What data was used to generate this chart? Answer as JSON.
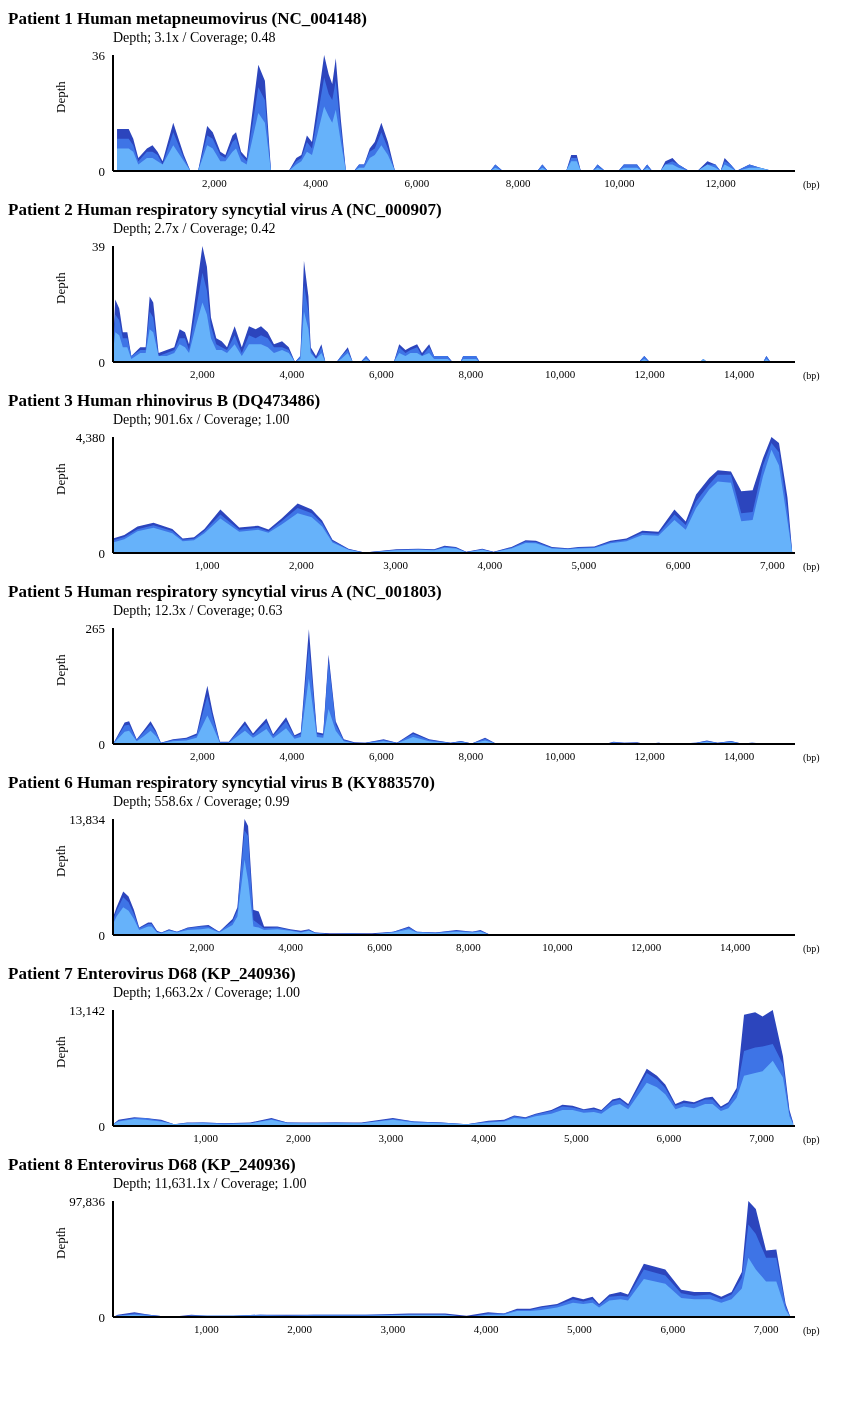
{
  "chart_data": [
    {
      "type": "area",
      "title": "Patient 1  Human metapneumovirus (NC_004148)",
      "subtitle": "Depth; 3.1x / Coverage; 0.48",
      "xlabel": "(bp)",
      "ylabel": "Depth",
      "xlim": [
        0,
        13470
      ],
      "ylim": [
        0,
        36
      ],
      "xticks": [
        {
          "value": 2000,
          "label": "2,000"
        },
        {
          "value": 4000,
          "label": "4,000"
        },
        {
          "value": 6000,
          "label": "6,000"
        },
        {
          "value": 8000,
          "label": "8,000"
        },
        {
          "value": 10000,
          "label": "10,000"
        },
        {
          "value": 12000,
          "label": "12,000"
        }
      ],
      "yticks": [
        0,
        36
      ],
      "x": [
        80,
        310,
        400,
        500,
        670,
        780,
        880,
        980,
        1190,
        1400,
        1530,
        1680,
        1860,
        1970,
        2120,
        2220,
        2360,
        2430,
        2530,
        2640,
        2870,
        3000,
        3120,
        3470,
        3620,
        3720,
        3830,
        3930,
        4030,
        4170,
        4260,
        4330,
        4400,
        4500,
        4600,
        4760,
        4860,
        4960,
        5070,
        5170,
        5300,
        5430,
        5570,
        7450,
        7550,
        7700,
        8380,
        8480,
        8590,
        8950,
        9050,
        9160,
        9240,
        9470,
        9570,
        9720,
        9980,
        10090,
        10350,
        10450,
        10550,
        10650,
        10810,
        10910,
        11050,
        11170,
        11380,
        11540,
        11740,
        11900,
        12000,
        12080,
        12200,
        12310,
        12570,
        12780,
        13030
      ],
      "series": [
        {
          "color": "#2c45bd",
          "values": [
            13,
            13,
            10,
            4,
            7,
            8,
            6,
            3,
            15,
            5,
            0,
            0,
            14,
            12,
            6,
            5,
            11,
            12,
            6,
            4,
            33,
            28,
            0,
            0,
            4,
            5,
            11,
            9,
            20,
            36,
            30,
            27,
            35,
            16,
            0,
            0,
            2,
            2,
            7,
            9,
            15,
            9,
            0,
            0,
            2,
            0,
            0,
            2,
            0,
            0,
            5,
            5,
            0,
            0,
            2,
            0,
            0,
            2,
            2,
            0,
            2,
            0,
            0,
            3,
            4,
            2,
            0,
            0,
            3,
            2,
            0,
            4,
            2,
            0,
            2,
            1,
            0
          ]
        },
        {
          "color": "#3e74e6",
          "values": [
            10,
            10,
            8,
            3,
            6,
            6,
            5,
            2,
            12,
            4,
            0,
            0,
            11,
            10,
            5,
            4,
            9,
            10,
            5,
            3,
            26,
            22,
            0,
            0,
            3,
            4,
            9,
            7,
            16,
            29,
            24,
            22,
            28,
            13,
            0,
            0,
            2,
            2,
            6,
            7,
            12,
            7,
            0,
            0,
            2,
            0,
            0,
            2,
            0,
            0,
            4,
            4,
            0,
            0,
            2,
            0,
            0,
            2,
            2,
            0,
            2,
            0,
            0,
            2,
            3,
            2,
            0,
            0,
            2,
            2,
            0,
            3,
            2,
            0,
            2,
            1,
            0
          ]
        },
        {
          "color": "#66b2fa",
          "values": [
            7,
            7,
            6,
            2,
            4,
            4,
            3,
            2,
            8,
            3,
            0,
            0,
            8,
            7,
            3,
            3,
            6,
            7,
            3,
            2,
            18,
            15,
            0,
            0,
            2,
            3,
            6,
            5,
            11,
            20,
            17,
            15,
            19,
            9,
            0,
            0,
            1,
            1,
            4,
            5,
            8,
            5,
            0,
            0,
            1,
            0,
            0,
            1,
            0,
            0,
            3,
            3,
            0,
            0,
            1,
            0,
            0,
            1,
            1,
            0,
            1,
            0,
            0,
            2,
            2,
            1,
            0,
            0,
            2,
            1,
            0,
            2,
            1,
            0,
            1,
            1,
            0
          ]
        }
      ]
    },
    {
      "type": "area",
      "title": "Patient 2  Human respiratory syncytial virus A (NC_000907)",
      "subtitle": "Depth; 2.7x / Coverage; 0.42",
      "xlabel": "(bp)",
      "ylabel": "Depth",
      "xlim": [
        0,
        15250
      ],
      "ylim": [
        0,
        39
      ],
      "xticks": [
        {
          "value": 2000,
          "label": "2,000"
        },
        {
          "value": 4000,
          "label": "4,000"
        },
        {
          "value": 6000,
          "label": "6,000"
        },
        {
          "value": 8000,
          "label": "8,000"
        },
        {
          "value": 10000,
          "label": "10,000"
        },
        {
          "value": 12000,
          "label": "12,000"
        },
        {
          "value": 14000,
          "label": "14,000"
        }
      ],
      "yticks": [
        0,
        39
      ],
      "x": [
        0,
        50,
        140,
        220,
        320,
        410,
        610,
        730,
        820,
        900,
        1020,
        1200,
        1370,
        1490,
        1610,
        1700,
        1870,
        2000,
        2100,
        2190,
        2310,
        2430,
        2550,
        2720,
        2880,
        3040,
        3190,
        3310,
        3460,
        3600,
        3780,
        3930,
        4070,
        4190,
        4270,
        4370,
        4420,
        4540,
        4660,
        4750,
        5000,
        5100,
        5250,
        5360,
        5540,
        5660,
        5770,
        6280,
        6400,
        6540,
        6650,
        6800,
        6910,
        7070,
        7180,
        7300,
        7480,
        7590,
        7770,
        7830,
        8120,
        8200,
        11760,
        11880,
        12000,
        13130,
        13200,
        13280,
        14540,
        14610,
        14700
      ],
      "series": [
        {
          "color": "#2c45bd",
          "values": [
            6,
            21,
            18,
            10,
            10,
            2,
            5,
            5,
            22,
            20,
            3,
            4,
            5,
            11,
            10,
            6,
            25,
            39,
            32,
            15,
            8,
            7,
            5,
            12,
            5,
            12,
            11,
            12,
            10,
            6,
            7,
            5,
            0,
            2,
            34,
            22,
            5,
            2,
            6,
            0,
            0,
            2,
            5,
            0,
            0,
            2,
            0,
            0,
            6,
            4,
            5,
            6,
            3,
            6,
            2,
            2,
            2,
            0,
            0,
            2,
            2,
            0,
            0,
            2,
            0,
            0,
            1,
            0,
            0,
            2,
            0
          ]
        },
        {
          "color": "#3e74e6",
          "values": [
            5,
            16,
            14,
            8,
            8,
            2,
            4,
            4,
            17,
            15,
            2,
            3,
            4,
            8,
            8,
            4,
            19,
            30,
            24,
            12,
            6,
            5,
            4,
            9,
            3,
            9,
            8,
            9,
            8,
            5,
            5,
            4,
            0,
            2,
            26,
            17,
            4,
            1,
            5,
            0,
            0,
            2,
            4,
            0,
            0,
            2,
            0,
            0,
            5,
            3,
            4,
            5,
            2,
            5,
            2,
            2,
            2,
            0,
            0,
            2,
            2,
            0,
            0,
            2,
            0,
            0,
            1,
            0,
            0,
            2,
            0
          ]
        },
        {
          "color": "#66b2fa",
          "values": [
            3,
            10,
            9,
            5,
            5,
            1,
            3,
            3,
            11,
            10,
            2,
            2,
            3,
            6,
            5,
            3,
            13,
            20,
            16,
            8,
            4,
            4,
            3,
            6,
            2,
            6,
            6,
            6,
            5,
            3,
            4,
            3,
            0,
            1,
            17,
            11,
            3,
            1,
            3,
            0,
            0,
            1,
            3,
            0,
            0,
            1,
            0,
            0,
            3,
            2,
            3,
            3,
            2,
            3,
            1,
            1,
            1,
            0,
            0,
            1,
            1,
            0,
            0,
            1,
            0,
            0,
            1,
            0,
            0,
            1,
            0
          ]
        }
      ]
    },
    {
      "type": "area",
      "title": "Patient 3  Human rhinovirus B (DQ473486)",
      "subtitle": "Depth; 901.6x / Coverage; 1.00",
      "xlabel": "(bp)",
      "ylabel": "Depth",
      "xlim": [
        0,
        7240
      ],
      "ylim": [
        0,
        4380
      ],
      "xticks": [
        {
          "value": 1000,
          "label": "1,000"
        },
        {
          "value": 2000,
          "label": "2,000"
        },
        {
          "value": 3000,
          "label": "3,000"
        },
        {
          "value": 4000,
          "label": "4,000"
        },
        {
          "value": 5000,
          "label": "5,000"
        },
        {
          "value": 6000,
          "label": "6,000"
        },
        {
          "value": 7000,
          "label": "7,000"
        }
      ],
      "yticks": [
        0,
        {
          "value": 4380,
          "label": "4,380"
        }
      ],
      "x": [
        0,
        120,
        260,
        430,
        630,
        740,
        860,
        970,
        1140,
        1340,
        1540,
        1650,
        1790,
        1960,
        2110,
        2220,
        2330,
        2500,
        2670,
        3010,
        3240,
        3410,
        3520,
        3640,
        3750,
        3920,
        4040,
        4230,
        4380,
        4490,
        4660,
        4830,
        4940,
        5110,
        5280,
        5450,
        5620,
        5790,
        5960,
        6080,
        6190,
        6330,
        6420,
        6560,
        6670,
        6790,
        6900,
        6990,
        7070,
        7160,
        7210
      ],
      "series": [
        {
          "color": "#2c45bd",
          "values": [
            550,
            680,
            1000,
            1140,
            910,
            550,
            590,
            910,
            1640,
            960,
            1030,
            890,
            1300,
            1870,
            1640,
            1230,
            500,
            160,
            20,
            140,
            160,
            140,
            270,
            230,
            50,
            160,
            50,
            230,
            480,
            460,
            230,
            180,
            230,
            250,
            460,
            550,
            840,
            800,
            1640,
            1190,
            2210,
            2830,
            3120,
            3080,
            2330,
            2370,
            3580,
            4380,
            4150,
            2100,
            50
          ]
        },
        {
          "color": "#3e74e6",
          "values": [
            480,
            600,
            900,
            1050,
            830,
            500,
            540,
            830,
            1450,
            880,
            950,
            820,
            1200,
            1700,
            1500,
            1120,
            450,
            140,
            20,
            120,
            140,
            120,
            240,
            200,
            40,
            140,
            40,
            200,
            430,
            420,
            200,
            160,
            200,
            220,
            420,
            500,
            760,
            730,
            1450,
            1060,
            1950,
            2600,
            2950,
            2950,
            1500,
            1550,
            3300,
            4150,
            3800,
            1600,
            30
          ]
        },
        {
          "color": "#66b2fa",
          "values": [
            400,
            520,
            820,
            950,
            750,
            440,
            480,
            750,
            1300,
            800,
            880,
            760,
            1080,
            1500,
            1350,
            1000,
            400,
            120,
            10,
            100,
            120,
            100,
            200,
            170,
            30,
            120,
            30,
            170,
            380,
            370,
            170,
            140,
            170,
            190,
            370,
            440,
            680,
            650,
            1250,
            880,
            1700,
            2400,
            2700,
            2650,
            1200,
            1250,
            2900,
            3900,
            3300,
            1200,
            20
          ]
        }
      ]
    },
    {
      "type": "area",
      "title": "Patient 5  Human respiratory syncytial virus A (NC_001803)",
      "subtitle": "Depth; 12.3x / Coverage; 0.63",
      "xlabel": "(bp)",
      "ylabel": "Depth",
      "xlim": [
        0,
        15250
      ],
      "ylim": [
        0,
        265
      ],
      "xticks": [
        {
          "value": 2000,
          "label": "2,000"
        },
        {
          "value": 4000,
          "label": "4,000"
        },
        {
          "value": 6000,
          "label": "6,000"
        },
        {
          "value": 8000,
          "label": "8,000"
        },
        {
          "value": 10000,
          "label": "10,000"
        },
        {
          "value": 12000,
          "label": "12,000"
        },
        {
          "value": 14000,
          "label": "14,000"
        }
      ],
      "yticks": [
        0,
        265
      ],
      "x": [
        0,
        260,
        360,
        530,
        680,
        840,
        960,
        1070,
        1340,
        1640,
        1870,
        2110,
        2230,
        2390,
        2590,
        2950,
        3130,
        3430,
        3580,
        3870,
        4060,
        4200,
        4380,
        4560,
        4700,
        4820,
        4980,
        5160,
        5400,
        5640,
        6050,
        6350,
        6710,
        7070,
        7550,
        7780,
        8020,
        8320,
        8560,
        8740,
        11000,
        11190,
        11430,
        11720,
        11900,
        12200,
        12440,
        13040,
        13280,
        13520,
        13820,
        14050,
        14290,
        14590,
        14770
      ],
      "series": [
        {
          "color": "#2c45bd",
          "values": [
            0,
            49,
            52,
            11,
            30,
            52,
            31,
            3,
            11,
            14,
            24,
            133,
            72,
            5,
            5,
            52,
            24,
            58,
            22,
            61,
            20,
            27,
            262,
            27,
            24,
            204,
            52,
            11,
            4,
            3,
            11,
            3,
            27,
            11,
            3,
            7,
            1,
            14,
            1,
            0,
            0,
            5,
            3,
            4,
            0,
            3,
            0,
            3,
            8,
            3,
            7,
            1,
            3,
            1,
            0
          ]
        },
        {
          "color": "#3e74e6",
          "values": [
            0,
            42,
            44,
            9,
            26,
            44,
            26,
            3,
            9,
            12,
            20,
            110,
            60,
            4,
            4,
            44,
            20,
            49,
            19,
            52,
            17,
            23,
            225,
            23,
            20,
            190,
            44,
            9,
            3,
            3,
            9,
            3,
            23,
            9,
            3,
            6,
            1,
            12,
            1,
            0,
            0,
            4,
            3,
            3,
            0,
            3,
            0,
            3,
            7,
            3,
            6,
            1,
            3,
            1,
            0
          ]
        },
        {
          "color": "#66b2fa",
          "values": [
            0,
            28,
            30,
            6,
            17,
            30,
            18,
            2,
            6,
            8,
            14,
            65,
            40,
            3,
            3,
            30,
            14,
            34,
            13,
            36,
            12,
            16,
            150,
            16,
            14,
            80,
            30,
            6,
            2,
            2,
            6,
            2,
            16,
            6,
            2,
            4,
            1,
            8,
            1,
            0,
            0,
            3,
            2,
            2,
            0,
            2,
            0,
            2,
            5,
            2,
            4,
            1,
            2,
            1,
            0
          ]
        }
      ]
    },
    {
      "type": "area",
      "title": "Patient 6  Human respiratory syncytial virus B (KY883570)",
      "subtitle": "Depth; 558.6x / Coverage; 0.99",
      "xlabel": "(bp)",
      "ylabel": "Depth",
      "xlim": [
        0,
        15350
      ],
      "ylim": [
        0,
        13834
      ],
      "xticks": [
        {
          "value": 2000,
          "label": "2,000"
        },
        {
          "value": 4000,
          "label": "4,000"
        },
        {
          "value": 6000,
          "label": "6,000"
        },
        {
          "value": 8000,
          "label": "8,000"
        },
        {
          "value": 10000,
          "label": "10,000"
        },
        {
          "value": 12000,
          "label": "12,000"
        },
        {
          "value": 14000,
          "label": "14,000"
        }
      ],
      "yticks": [
        0,
        {
          "value": 13834,
          "label": "13,834"
        }
      ],
      "x": [
        0,
        80,
        230,
        350,
        470,
        590,
        790,
        870,
        990,
        1090,
        1260,
        1440,
        1680,
        1980,
        2150,
        2390,
        2690,
        2800,
        2960,
        3040,
        3160,
        3280,
        3400,
        3700,
        3990,
        4230,
        4410,
        4550,
        4880,
        5360,
        5830,
        6310,
        6660,
        6840,
        7260,
        7730,
        8090,
        8270,
        8500,
        14620,
        14860
      ],
      "series": [
        {
          "color": "#2c45bd",
          "values": [
            2100,
            3300,
            5200,
            4600,
            3000,
            900,
            1500,
            1500,
            500,
            300,
            700,
            400,
            900,
            1100,
            1200,
            400,
            1900,
            3300,
            13834,
            13000,
            3000,
            2800,
            1000,
            1000,
            700,
            500,
            700,
            300,
            200,
            200,
            200,
            400,
            1000,
            400,
            300,
            600,
            400,
            600,
            0,
            100,
            0
          ]
        },
        {
          "color": "#3e74e6",
          "values": [
            1800,
            2900,
            4500,
            3900,
            2500,
            800,
            1300,
            1300,
            400,
            300,
            600,
            400,
            800,
            1000,
            1000,
            400,
            1600,
            2900,
            12500,
            11800,
            1800,
            1300,
            800,
            900,
            600,
            400,
            600,
            300,
            100,
            200,
            100,
            400,
            900,
            400,
            300,
            500,
            400,
            500,
            0,
            100,
            0
          ]
        },
        {
          "color": "#66b2fa",
          "values": [
            1300,
            2200,
            3300,
            2900,
            1900,
            600,
            1000,
            1000,
            300,
            200,
            500,
            300,
            600,
            700,
            800,
            300,
            1200,
            2200,
            9000,
            6500,
            1000,
            900,
            600,
            700,
            500,
            300,
            500,
            200,
            100,
            100,
            100,
            300,
            700,
            300,
            200,
            400,
            300,
            400,
            0,
            0,
            0
          ]
        }
      ]
    },
    {
      "type": "area",
      "title": "Patient 7  Enterovirus D68 (KP_240936)",
      "subtitle": "Depth; 1,663.2x / Coverage; 1.00",
      "xlabel": "(bp)",
      "ylabel": "Depth",
      "xlim": [
        0,
        7360
      ],
      "ylim": [
        0,
        13142
      ],
      "xticks": [
        {
          "value": 1000,
          "label": "1,000"
        },
        {
          "value": 2000,
          "label": "2,000"
        },
        {
          "value": 3000,
          "label": "3,000"
        },
        {
          "value": 4000,
          "label": "4,000"
        },
        {
          "value": 5000,
          "label": "5,000"
        },
        {
          "value": 6000,
          "label": "6,000"
        },
        {
          "value": 7000,
          "label": "7,000"
        }
      ],
      "yticks": [
        0,
        {
          "value": 13142,
          "label": "13,142"
        }
      ],
      "x": [
        0,
        60,
        230,
        350,
        520,
        660,
        800,
        970,
        1200,
        1480,
        1710,
        1880,
        2110,
        2400,
        2680,
        3020,
        3250,
        3540,
        3820,
        4050,
        4220,
        4330,
        4450,
        4560,
        4730,
        4850,
        4960,
        5080,
        5190,
        5270,
        5390,
        5470,
        5560,
        5760,
        5870,
        5960,
        6070,
        6160,
        6270,
        6390,
        6470,
        6560,
        6640,
        6730,
        6810,
        6930,
        7010,
        7120,
        7230,
        7300,
        7340
      ],
      "series": [
        {
          "color": "#2c45bd",
          "values": [
            200,
            700,
            1000,
            900,
            700,
            200,
            400,
            400,
            300,
            400,
            900,
            400,
            400,
            400,
            400,
            900,
            500,
            400,
            200,
            600,
            700,
            1200,
            1000,
            1400,
            1800,
            2400,
            2300,
            1900,
            2100,
            1800,
            3000,
            3200,
            2500,
            6500,
            5700,
            4700,
            2500,
            2900,
            2700,
            3200,
            3300,
            2200,
            2700,
            4300,
            12600,
            12900,
            12400,
            13142,
            7900,
            1800,
            400
          ]
        },
        {
          "color": "#3e74e6",
          "values": [
            200,
            600,
            900,
            900,
            600,
            200,
            300,
            400,
            300,
            300,
            800,
            400,
            300,
            400,
            300,
            800,
            500,
            400,
            200,
            500,
            600,
            1100,
            900,
            1300,
            1700,
            2200,
            2100,
            1800,
            1900,
            1700,
            2800,
            3000,
            2300,
            6000,
            5300,
            4300,
            2300,
            2600,
            2500,
            3000,
            3000,
            2000,
            2500,
            3900,
            8500,
            8900,
            9000,
            9300,
            7000,
            1500,
            300
          ]
        },
        {
          "color": "#66b2fa",
          "values": [
            200,
            500,
            800,
            700,
            500,
            200,
            300,
            300,
            200,
            300,
            700,
            300,
            300,
            300,
            300,
            700,
            400,
            300,
            200,
            400,
            500,
            900,
            800,
            1100,
            1400,
            1800,
            1800,
            1500,
            1600,
            1400,
            2300,
            2500,
            1900,
            4900,
            4400,
            3600,
            1900,
            2200,
            2000,
            2500,
            2500,
            1700,
            2000,
            3200,
            5700,
            6000,
            6200,
            7400,
            5500,
            1100,
            200
          ]
        }
      ]
    },
    {
      "type": "area",
      "title": "Patient 8  Enterovirus D68 (KP_240936)",
      "subtitle": "Depth; 11,631.1x / Coverage; 1.00",
      "xlabel": "(bp)",
      "ylabel": "Depth",
      "xlim": [
        0,
        7310
      ],
      "ylim": [
        0,
        97836
      ],
      "xticks": [
        {
          "value": 1000,
          "label": "1,000"
        },
        {
          "value": 2000,
          "label": "2,000"
        },
        {
          "value": 3000,
          "label": "3,000"
        },
        {
          "value": 4000,
          "label": "4,000"
        },
        {
          "value": 5000,
          "label": "5,000"
        },
        {
          "value": 6000,
          "label": "6,000"
        },
        {
          "value": 7000,
          "label": "7,000"
        }
      ],
      "yticks": [
        0,
        {
          "value": 97836,
          "label": "97,836"
        }
      ],
      "x": [
        0,
        50,
        230,
        390,
        610,
        840,
        1010,
        1290,
        1580,
        1860,
        2150,
        2710,
        3170,
        3560,
        3790,
        4020,
        4190,
        4330,
        4470,
        4590,
        4760,
        4930,
        5040,
        5140,
        5210,
        5320,
        5440,
        5520,
        5690,
        5920,
        6090,
        6230,
        6400,
        6520,
        6630,
        6740,
        6810,
        6890,
        7000,
        7110,
        7210,
        7260
      ],
      "series": [
        {
          "color": "#2c45bd",
          "values": [
            0,
            2000,
            4000,
            2000,
            0,
            2000,
            1000,
            1000,
            2000,
            2000,
            2000,
            2000,
            3000,
            3000,
            1000,
            4000,
            3000,
            7000,
            7000,
            9000,
            11000,
            17000,
            15000,
            17000,
            11000,
            19000,
            21000,
            19000,
            45000,
            40000,
            23000,
            21000,
            21000,
            17000,
            21000,
            38000,
            97836,
            91000,
            56000,
            57000,
            11000,
            0
          ]
        },
        {
          "color": "#3e74e6",
          "values": [
            0,
            1000,
            3000,
            2000,
            0,
            1000,
            1000,
            1000,
            2000,
            1000,
            2000,
            2000,
            2000,
            2000,
            0,
            3000,
            3000,
            6000,
            6000,
            8000,
            10000,
            15000,
            13000,
            15000,
            10000,
            17000,
            18000,
            17000,
            40000,
            35000,
            20000,
            18000,
            19000,
            15000,
            19000,
            33000,
            78000,
            70000,
            50000,
            50000,
            9000,
            0
          ]
        },
        {
          "color": "#66b2fa",
          "values": [
            0,
            1000,
            2000,
            1000,
            0,
            1000,
            1000,
            1000,
            1000,
            1000,
            1000,
            1000,
            2000,
            2000,
            0,
            2000,
            2000,
            5000,
            5000,
            6000,
            8000,
            12000,
            11000,
            12000,
            8000,
            14000,
            15000,
            14000,
            32000,
            28000,
            16000,
            15000,
            15000,
            12000,
            15000,
            24000,
            50000,
            40000,
            30000,
            30000,
            6000,
            0
          ]
        }
      ]
    }
  ]
}
